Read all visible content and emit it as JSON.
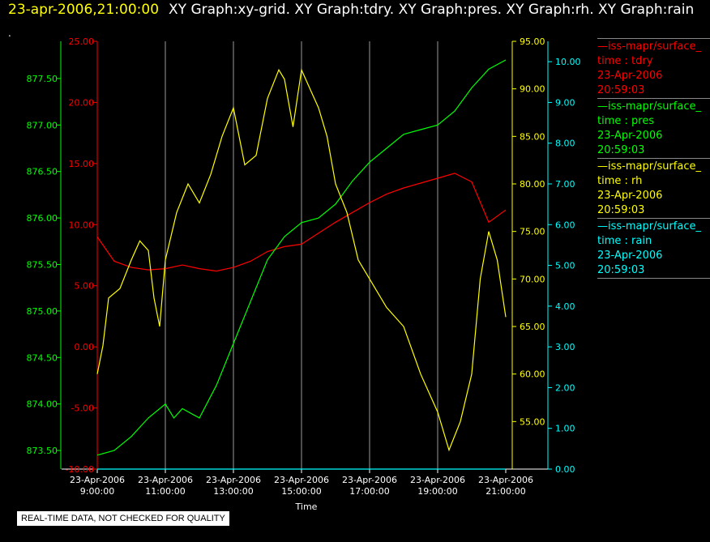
{
  "header": {
    "timestamp": "23-apr-2006,21:00:00",
    "graph_titles": "XY Graph:xy-grid.  XY Graph:tdry.  XY Graph:pres.  XY Graph:rh.  XY Graph:rain",
    "dot": "."
  },
  "disclaimer": "REAL-TIME DATA, NOT CHECKED FOR QUALITY",
  "legend": [
    {
      "name": "iss-mapr/surface_",
      "field": "time : tdry",
      "date": "23-Apr-2006",
      "time": "20:59:03",
      "color": "#ff0000"
    },
    {
      "name": "iss-mapr/surface_",
      "field": "time : pres",
      "date": "23-Apr-2006",
      "time": "20:59:03",
      "color": "#00ff00"
    },
    {
      "name": "iss-mapr/surface_",
      "field": "time : rh",
      "date": "23-Apr-2006",
      "time": "20:59:03",
      "color": "#ffff00"
    },
    {
      "name": "iss-mapr/surface_",
      "field": "time : rain",
      "date": "23-Apr-2006",
      "time": "20:59:03",
      "color": "#00ffff"
    }
  ],
  "chart_data": {
    "type": "line",
    "xlabel": "Time",
    "xlim": [
      "2006-04-23 09:00",
      "2006-04-23 21:00"
    ],
    "x_ticks": [
      {
        "date": "23-Apr-2006",
        "time": "9:00:00"
      },
      {
        "date": "23-Apr-2006",
        "time": "11:00:00"
      },
      {
        "date": "23-Apr-2006",
        "time": "13:00:00"
      },
      {
        "date": "23-Apr-2006",
        "time": "15:00:00"
      },
      {
        "date": "23-Apr-2006",
        "time": "17:00:00"
      },
      {
        "date": "23-Apr-2006",
        "time": "19:00:00"
      },
      {
        "date": "23-Apr-2006",
        "time": "21:00:00"
      }
    ],
    "grid": "vertical",
    "axes": [
      {
        "id": "tdry",
        "color": "#ff0000",
        "range": [
          -10,
          25
        ],
        "ticks": [
          "-10.00",
          "-5.00",
          "0.00",
          "5.00",
          "10.00",
          "15.00",
          "20.00",
          "25.00"
        ]
      },
      {
        "id": "pres",
        "color": "#00ff00",
        "range": [
          873.3,
          877.9
        ],
        "ticks": [
          "873.50",
          "874.00",
          "874.50",
          "875.00",
          "875.50",
          "876.00",
          "876.50",
          "877.00",
          "877.50"
        ]
      },
      {
        "id": "rh",
        "color": "#ffff00",
        "range": [
          50,
          95
        ],
        "ticks": [
          "55.00",
          "60.00",
          "65.00",
          "70.00",
          "75.00",
          "80.00",
          "85.00",
          "90.00",
          "95.00"
        ]
      },
      {
        "id": "rain",
        "color": "#00ffff",
        "range": [
          0,
          10.5
        ],
        "ticks": [
          "0.00",
          "1.00",
          "2.00",
          "3.00",
          "4.00",
          "5.00",
          "6.00",
          "7.00",
          "8.00",
          "9.00",
          "10.00"
        ]
      }
    ],
    "series": [
      {
        "field": "tdry",
        "axis": "tdry",
        "color": "#ff0000",
        "x": [
          "2006-04-23 09:00",
          "2006-04-23 09:15",
          "2006-04-23 09:30",
          "2006-04-23 10:00",
          "2006-04-23 10:30",
          "2006-04-23 11:00",
          "2006-04-23 11:30",
          "2006-04-23 12:00",
          "2006-04-23 12:30",
          "2006-04-23 13:00",
          "2006-04-23 13:30",
          "2006-04-23 14:00",
          "2006-04-23 14:30",
          "2006-04-23 15:00",
          "2006-04-23 15:30",
          "2006-04-23 16:00",
          "2006-04-23 16:30",
          "2006-04-23 17:00",
          "2006-04-23 17:30",
          "2006-04-23 18:00",
          "2006-04-23 18:30",
          "2006-04-23 19:00",
          "2006-04-23 19:30",
          "2006-04-23 20:00",
          "2006-04-23 20:30",
          "2006-04-23 21:00"
        ],
        "y": [
          9.0,
          8.0,
          7.0,
          6.5,
          6.3,
          6.4,
          6.7,
          6.4,
          6.2,
          6.5,
          7.0,
          7.8,
          8.2,
          8.4,
          9.3,
          10.2,
          11.0,
          11.8,
          12.5,
          13.0,
          13.4,
          13.8,
          14.2,
          13.5,
          10.2,
          11.2
        ]
      },
      {
        "field": "pres",
        "axis": "pres",
        "color": "#00ff00",
        "x": [
          "2006-04-23 09:00",
          "2006-04-23 09:30",
          "2006-04-23 10:00",
          "2006-04-23 10:30",
          "2006-04-23 11:00",
          "2006-04-23 11:15",
          "2006-04-23 11:30",
          "2006-04-23 12:00",
          "2006-04-23 12:30",
          "2006-04-23 13:00",
          "2006-04-23 13:30",
          "2006-04-23 14:00",
          "2006-04-23 14:30",
          "2006-04-23 15:00",
          "2006-04-23 15:30",
          "2006-04-23 16:00",
          "2006-04-23 16:30",
          "2006-04-23 17:00",
          "2006-04-23 17:30",
          "2006-04-23 18:00",
          "2006-04-23 18:30",
          "2006-04-23 19:00",
          "2006-04-23 19:30",
          "2006-04-23 20:00",
          "2006-04-23 20:30",
          "2006-04-23 21:00"
        ],
        "y": [
          873.45,
          873.5,
          873.65,
          873.85,
          874.0,
          873.85,
          873.95,
          873.85,
          874.2,
          874.65,
          875.1,
          875.55,
          875.8,
          875.95,
          876.0,
          876.15,
          876.4,
          876.6,
          876.75,
          876.9,
          876.95,
          877.0,
          877.15,
          877.4,
          877.6,
          877.7
        ]
      },
      {
        "field": "rh",
        "axis": "rh",
        "color": "#ffff00",
        "x": [
          "2006-04-23 09:00",
          "2006-04-23 09:10",
          "2006-04-23 09:20",
          "2006-04-23 09:40",
          "2006-04-23 10:00",
          "2006-04-23 10:15",
          "2006-04-23 10:30",
          "2006-04-23 10:40",
          "2006-04-23 10:50",
          "2006-04-23 11:00",
          "2006-04-23 11:20",
          "2006-04-23 11:40",
          "2006-04-23 12:00",
          "2006-04-23 12:20",
          "2006-04-23 12:40",
          "2006-04-23 13:00",
          "2006-04-23 13:20",
          "2006-04-23 13:40",
          "2006-04-23 14:00",
          "2006-04-23 14:20",
          "2006-04-23 14:30",
          "2006-04-23 14:45",
          "2006-04-23 15:00",
          "2006-04-23 15:15",
          "2006-04-23 15:30",
          "2006-04-23 15:45",
          "2006-04-23 16:00",
          "2006-04-23 16:20",
          "2006-04-23 16:40",
          "2006-04-23 17:00",
          "2006-04-23 17:30",
          "2006-04-23 18:00",
          "2006-04-23 18:30",
          "2006-04-23 19:00",
          "2006-04-23 19:20",
          "2006-04-23 19:40",
          "2006-04-23 20:00",
          "2006-04-23 20:15",
          "2006-04-23 20:30",
          "2006-04-23 20:45",
          "2006-04-23 21:00"
        ],
        "y": [
          60,
          63,
          68,
          69,
          72,
          74,
          73,
          68,
          65,
          72,
          77,
          80,
          78,
          81,
          85,
          88,
          82,
          83,
          89,
          92,
          91,
          86,
          92,
          90,
          88,
          85,
          80,
          77,
          72,
          70,
          67,
          65,
          60,
          56,
          52,
          55,
          60,
          70,
          75,
          72,
          66
        ]
      },
      {
        "field": "rain",
        "axis": "rain",
        "color": "#00ffff",
        "x": [
          "2006-04-23 09:00",
          "2006-04-23 21:00"
        ],
        "y": [
          0.0,
          0.0
        ]
      }
    ]
  }
}
